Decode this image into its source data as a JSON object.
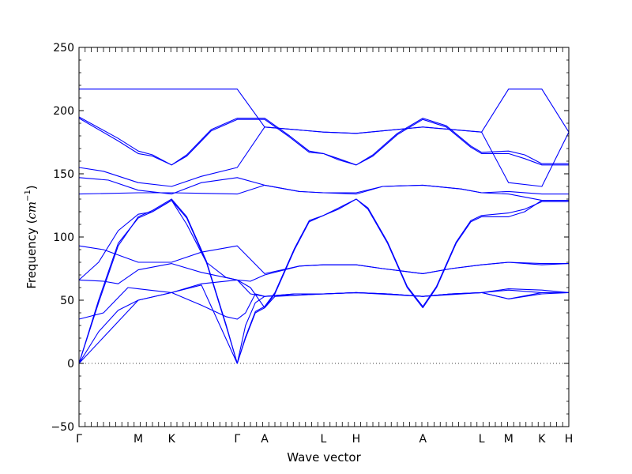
{
  "chart_data": {
    "type": "line",
    "xlabel": "Wave vector",
    "ylabel_text": "Frequency (",
    "ylabel_unit_base": "cm",
    "ylabel_unit_exp": "−1",
    "ylabel_close": ")",
    "ylim": [
      -50,
      250
    ],
    "yticks": [
      -50,
      0,
      50,
      100,
      150,
      200,
      250
    ],
    "xlim": [
      0,
      100
    ],
    "kpoint_labels": [
      {
        "label": "Γ",
        "x": 0
      },
      {
        "label": "M",
        "x": 12.1
      },
      {
        "label": "K",
        "x": 18.9
      },
      {
        "label": "Γ",
        "x": 32.3
      },
      {
        "label": "A",
        "x": 37.9
      },
      {
        "label": "L",
        "x": 49.9
      },
      {
        "label": "H",
        "x": 56.6
      },
      {
        "label": "A",
        "x": 70.2
      },
      {
        "label": "L",
        "x": 82.2
      },
      {
        "label": "M",
        "x": 87.7
      },
      {
        "label": "K",
        "x": 94.5
      },
      {
        "label": "H",
        "x": 100
      }
    ],
    "zero_line": 0,
    "line_color": "#0000ff",
    "series": [
      {
        "points": [
          [
            0,
            217
          ],
          [
            32.3,
            217
          ],
          [
            37.9,
            187
          ],
          [
            49.9,
            183
          ],
          [
            56.6,
            182
          ],
          [
            70.2,
            187
          ],
          [
            82.2,
            183
          ],
          [
            87.7,
            217
          ],
          [
            94.5,
            217
          ],
          [
            100,
            183
          ]
        ]
      },
      {
        "points": [
          [
            0,
            195
          ],
          [
            8,
            178
          ],
          [
            12.1,
            168
          ],
          [
            15,
            165
          ],
          [
            18.9,
            157
          ],
          [
            22,
            165
          ],
          [
            27,
            185
          ],
          [
            32.3,
            194
          ],
          [
            37.9,
            194
          ],
          [
            43,
            180
          ],
          [
            47,
            168
          ],
          [
            49.9,
            166
          ],
          [
            53,
            162
          ],
          [
            56.6,
            157
          ],
          [
            60,
            165
          ],
          [
            65,
            182
          ],
          [
            70.2,
            194
          ],
          [
            75,
            188
          ],
          [
            80,
            172
          ],
          [
            82.2,
            167
          ],
          [
            87.7,
            168
          ],
          [
            91,
            165
          ],
          [
            94.5,
            158
          ],
          [
            100,
            158
          ]
        ]
      },
      {
        "points": [
          [
            0,
            194
          ],
          [
            8,
            176
          ],
          [
            12.1,
            166
          ],
          [
            15,
            164
          ],
          [
            18.9,
            157
          ],
          [
            22,
            164
          ],
          [
            27,
            184
          ],
          [
            32.3,
            193
          ],
          [
            37.9,
            193
          ],
          [
            43,
            179
          ],
          [
            47,
            167
          ],
          [
            49.9,
            166
          ],
          [
            53,
            161
          ],
          [
            56.6,
            157
          ],
          [
            60,
            164
          ],
          [
            65,
            181
          ],
          [
            70.2,
            193
          ],
          [
            75,
            187
          ],
          [
            80,
            171
          ],
          [
            82.2,
            166
          ],
          [
            87.7,
            166
          ],
          [
            91,
            162
          ],
          [
            94.5,
            157
          ],
          [
            100,
            157
          ]
        ]
      },
      {
        "points": [
          [
            0,
            155
          ],
          [
            5,
            152
          ],
          [
            12.1,
            143
          ],
          [
            18.9,
            140
          ],
          [
            25,
            148
          ],
          [
            32.3,
            155
          ],
          [
            37.9,
            187
          ],
          [
            49.9,
            183
          ],
          [
            56.6,
            182
          ],
          [
            70.2,
            187
          ],
          [
            82.2,
            183
          ],
          [
            87.7,
            143
          ],
          [
            94.5,
            140
          ],
          [
            100,
            183
          ]
        ]
      },
      {
        "points": [
          [
            0,
            147
          ],
          [
            6,
            145
          ],
          [
            12.1,
            137
          ],
          [
            18.9,
            134
          ],
          [
            25,
            143
          ],
          [
            32.3,
            147
          ],
          [
            37.9,
            141
          ],
          [
            45,
            136
          ],
          [
            49.9,
            135
          ],
          [
            56.6,
            134
          ],
          [
            62,
            140
          ],
          [
            70.2,
            141
          ],
          [
            78,
            138
          ],
          [
            82.2,
            135
          ],
          [
            87.7,
            136
          ],
          [
            94.5,
            134
          ],
          [
            100,
            134
          ]
        ]
      },
      {
        "points": [
          [
            0,
            134
          ],
          [
            12.1,
            135
          ],
          [
            18.9,
            135
          ],
          [
            32.3,
            134
          ],
          [
            37.9,
            141
          ],
          [
            45,
            136
          ],
          [
            49.9,
            135
          ],
          [
            56.6,
            135
          ],
          [
            62,
            140
          ],
          [
            70.2,
            141
          ],
          [
            78,
            138
          ],
          [
            82.2,
            135
          ],
          [
            87.7,
            134
          ],
          [
            94.5,
            129
          ],
          [
            100,
            129
          ]
        ]
      },
      {
        "points": [
          [
            0,
            0
          ],
          [
            4,
            50
          ],
          [
            8,
            95
          ],
          [
            12.1,
            115
          ],
          [
            15,
            120
          ],
          [
            18.9,
            129
          ],
          [
            22,
            115
          ],
          [
            26,
            80
          ],
          [
            30,
            30
          ],
          [
            32.3,
            0
          ],
          [
            34,
            20
          ],
          [
            36,
            40
          ],
          [
            37.9,
            44
          ],
          [
            40,
            55
          ],
          [
            44,
            90
          ],
          [
            47,
            112
          ],
          [
            49.9,
            117
          ],
          [
            53,
            122
          ],
          [
            56.6,
            130
          ],
          [
            59,
            122
          ],
          [
            63,
            95
          ],
          [
            67,
            60
          ],
          [
            70.2,
            44
          ],
          [
            73,
            60
          ],
          [
            77,
            95
          ],
          [
            80,
            112
          ],
          [
            82.2,
            116
          ],
          [
            87.7,
            116
          ],
          [
            91,
            120
          ],
          [
            94.5,
            129
          ],
          [
            100,
            129
          ]
        ]
      },
      {
        "points": [
          [
            0,
            0
          ],
          [
            4,
            48
          ],
          [
            8,
            93
          ],
          [
            12.1,
            116
          ],
          [
            15,
            121
          ],
          [
            18.9,
            130
          ],
          [
            22,
            116
          ],
          [
            26,
            81
          ],
          [
            30,
            31
          ],
          [
            32.3,
            0
          ],
          [
            34,
            21
          ],
          [
            36,
            41
          ],
          [
            37.9,
            45
          ],
          [
            40,
            56
          ],
          [
            44,
            91
          ],
          [
            47,
            113
          ],
          [
            49.9,
            117
          ],
          [
            53,
            123
          ],
          [
            56.6,
            130
          ],
          [
            59,
            123
          ],
          [
            63,
            96
          ],
          [
            67,
            61
          ],
          [
            70.2,
            45
          ],
          [
            73,
            61
          ],
          [
            77,
            96
          ],
          [
            80,
            113
          ],
          [
            82.2,
            117
          ],
          [
            87.7,
            119
          ],
          [
            91,
            122
          ],
          [
            94.5,
            128
          ],
          [
            100,
            128
          ]
        ]
      },
      {
        "points": [
          [
            0,
            93
          ],
          [
            5,
            90
          ],
          [
            12.1,
            80
          ],
          [
            18.9,
            80
          ],
          [
            25,
            88
          ],
          [
            32.3,
            93
          ],
          [
            37.9,
            71
          ],
          [
            45,
            77
          ],
          [
            49.9,
            78
          ],
          [
            56.6,
            78
          ],
          [
            62,
            75
          ],
          [
            70.2,
            71
          ],
          [
            76,
            75
          ],
          [
            82.2,
            78
          ],
          [
            87.7,
            80
          ],
          [
            94.5,
            79
          ],
          [
            100,
            79
          ]
        ]
      },
      {
        "points": [
          [
            0,
            66
          ],
          [
            4,
            80
          ],
          [
            8,
            105
          ],
          [
            12.1,
            118
          ],
          [
            15,
            120
          ],
          [
            18.9,
            129
          ],
          [
            22,
            110
          ],
          [
            26,
            80
          ],
          [
            30,
            68
          ],
          [
            32.3,
            66
          ],
          [
            35,
            60
          ],
          [
            37.9,
            44
          ],
          [
            40,
            53
          ],
          [
            49.9,
            55
          ],
          [
            56.6,
            56
          ],
          [
            63,
            55
          ],
          [
            70.2,
            53
          ],
          [
            76,
            55
          ],
          [
            82.2,
            56
          ],
          [
            87.7,
            59
          ],
          [
            94.5,
            58
          ],
          [
            100,
            56
          ]
        ]
      },
      {
        "points": [
          [
            0,
            66
          ],
          [
            5,
            65
          ],
          [
            8,
            63
          ],
          [
            12.1,
            74
          ],
          [
            18.9,
            79
          ],
          [
            25,
            72
          ],
          [
            32.3,
            66
          ],
          [
            35,
            65
          ],
          [
            37.9,
            70
          ],
          [
            45,
            77
          ],
          [
            49.9,
            78
          ],
          [
            56.6,
            78
          ],
          [
            62,
            75
          ],
          [
            70.2,
            71
          ],
          [
            76,
            75
          ],
          [
            82.2,
            78
          ],
          [
            87.7,
            80
          ],
          [
            94.5,
            78
          ],
          [
            100,
            79
          ]
        ]
      },
      {
        "points": [
          [
            0,
            35
          ],
          [
            5,
            40
          ],
          [
            8,
            52
          ],
          [
            10,
            60
          ],
          [
            12.1,
            59
          ],
          [
            18.9,
            56
          ],
          [
            25,
            46
          ],
          [
            30,
            37
          ],
          [
            32.3,
            35
          ],
          [
            34,
            40
          ],
          [
            36,
            55
          ],
          [
            37.9,
            53
          ],
          [
            44,
            55
          ],
          [
            49.9,
            55
          ],
          [
            56.6,
            56
          ],
          [
            63,
            55
          ],
          [
            70.2,
            53
          ],
          [
            76,
            55
          ],
          [
            82.2,
            56
          ],
          [
            87.7,
            51
          ],
          [
            94.5,
            55
          ],
          [
            100,
            56
          ]
        ]
      },
      {
        "points": [
          [
            0,
            0
          ],
          [
            4,
            25
          ],
          [
            8,
            42
          ],
          [
            12.1,
            50
          ],
          [
            18.9,
            56
          ],
          [
            25,
            63
          ],
          [
            32.3,
            66
          ],
          [
            35,
            55
          ],
          [
            37.9,
            53
          ],
          [
            44,
            55
          ],
          [
            49.9,
            55
          ],
          [
            56.6,
            56
          ],
          [
            63,
            55
          ],
          [
            70.2,
            53
          ],
          [
            76,
            55
          ],
          [
            82.2,
            56
          ],
          [
            87.7,
            51
          ],
          [
            94.5,
            56
          ],
          [
            100,
            56
          ]
        ]
      },
      {
        "points": [
          [
            0,
            0
          ],
          [
            12.1,
            50
          ],
          [
            18.9,
            56
          ],
          [
            25,
            62
          ],
          [
            32.3,
            0
          ],
          [
            34,
            30
          ],
          [
            36,
            48
          ],
          [
            37.9,
            53
          ],
          [
            56.6,
            56
          ],
          [
            70.2,
            53
          ],
          [
            82.2,
            56
          ],
          [
            87.7,
            58
          ],
          [
            94.5,
            56
          ],
          [
            100,
            56
          ]
        ]
      }
    ]
  }
}
